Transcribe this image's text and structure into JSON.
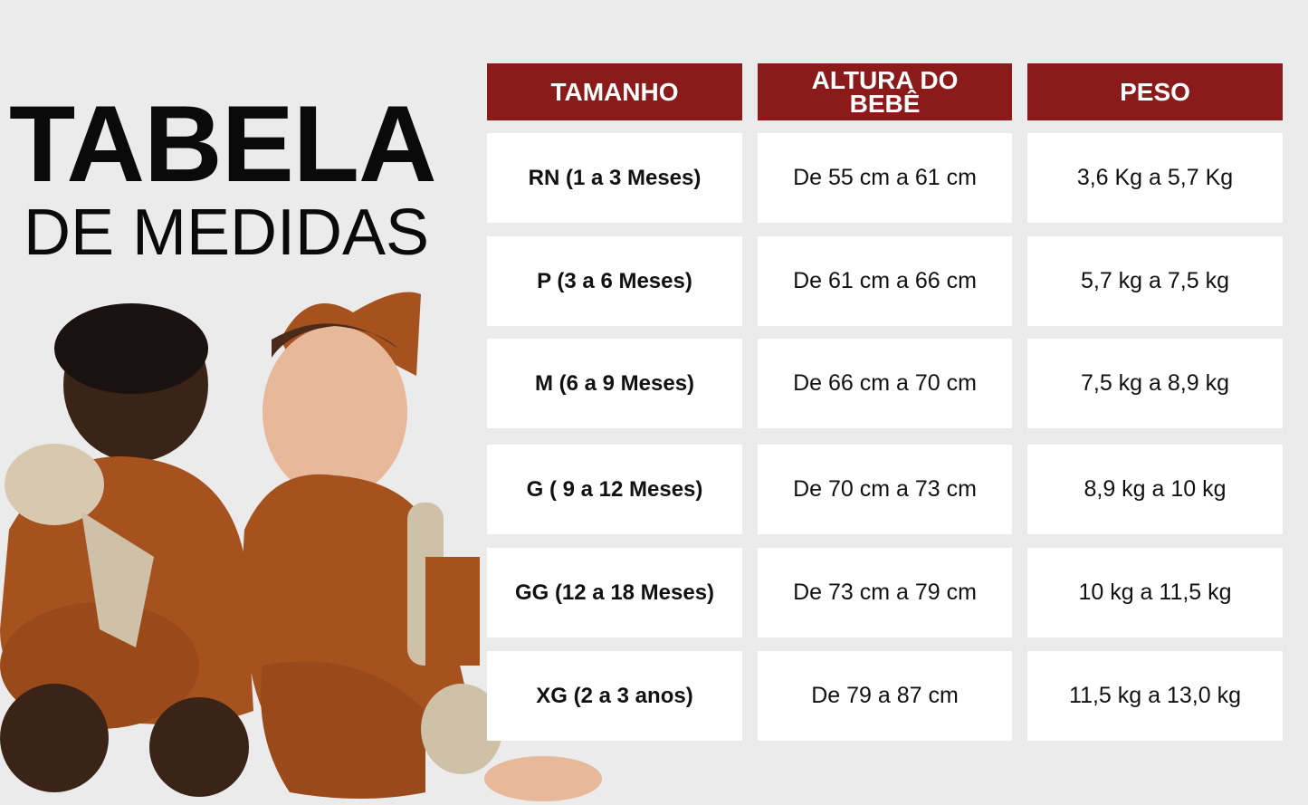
{
  "title": {
    "main": "TABELA",
    "sub": "DE MEDIDAS"
  },
  "colors": {
    "header_bg": "#8b1a1a",
    "cell_bg": "#ffffff",
    "page_bg": "#ebebeb",
    "outfit": "#a5521e"
  },
  "table": {
    "headers": [
      "TAMANHO",
      "ALTURA DO BEBÊ",
      "PESO"
    ],
    "rows": [
      [
        "RN (1 a 3 Meses)",
        "De 55 cm a 61 cm",
        "3,6 Kg a 5,7 Kg"
      ],
      [
        "P (3 a 6 Meses)",
        "De 61 cm a 66 cm",
        "5,7 kg a 7,5 kg"
      ],
      [
        "M (6 a 9 Meses)",
        "De 66 cm a 70 cm",
        "7,5 kg a 8,9 kg"
      ],
      [
        "G ( 9 a 12 Meses)",
        "De 70 cm a 73 cm",
        "8,9 kg a 10 kg"
      ],
      [
        "GG (12 a 18 Meses)",
        "De 73 cm a 79 cm",
        "10 kg a 11,5 kg"
      ],
      [
        "XG (2 a 3 anos)",
        "De 79 a 87 cm",
        "11,5 kg a 13,0 kg"
      ]
    ]
  }
}
